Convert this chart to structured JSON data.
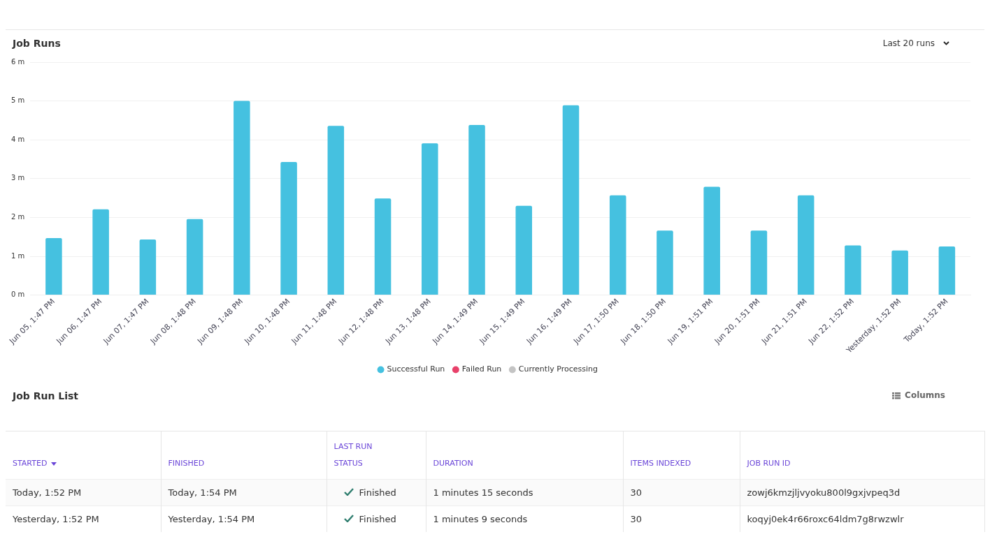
{
  "chart_data": [
    {
      "type": "bar",
      "title": "Job Runs",
      "annotations": [
        "Last 20 runs"
      ],
      "categories": [
        "Jun 05, 1:47 PM",
        "Jun 06, 1:47 PM",
        "Jun 07, 1:47 PM",
        "Jun 08, 1:48 PM",
        "Jun 09, 1:48 PM",
        "Jun 10, 1:48 PM",
        "Jun 11, 1:48 PM",
        "Jun 12, 1:48 PM",
        "Jun 13, 1:48 PM",
        "Jun 14, 1:49 PM",
        "Jun 15, 1:49 PM",
        "Jun 16, 1:49 PM",
        "Jun 17, 1:50 PM",
        "Jun 18, 1:50 PM",
        "Jun 19, 1:51 PM",
        "Jun 20, 1:51 PM",
        "Jun 21, 1:51 PM",
        "Jun 22, 1:52 PM",
        "Yesterday, 1:52 PM",
        "Today, 1:52 PM"
      ],
      "series": [
        {
          "name": "Successful Run",
          "color": "#45c1e0",
          "values": [
            1.47,
            2.21,
            1.43,
            1.96,
            5.0,
            3.43,
            4.36,
            2.49,
            3.91,
            4.38,
            2.3,
            4.89,
            2.57,
            1.66,
            2.79,
            1.66,
            2.57,
            1.28,
            1.15,
            1.25
          ]
        },
        {
          "name": "Failed Run",
          "color": "#e8416a",
          "values": [
            null,
            null,
            null,
            null,
            null,
            null,
            null,
            null,
            null,
            null,
            null,
            null,
            null,
            null,
            null,
            null,
            null,
            null,
            null,
            null
          ]
        },
        {
          "name": "Currently Processing",
          "color": "#c4c4c4",
          "values": [
            null,
            null,
            null,
            null,
            null,
            null,
            null,
            null,
            null,
            null,
            null,
            null,
            null,
            null,
            null,
            null,
            null,
            null,
            null,
            null
          ]
        }
      ],
      "stacked": true,
      "ylim": [
        0,
        6
      ],
      "yticks": [
        {
          "value": 0,
          "label": "0 m"
        },
        {
          "value": 1,
          "label": "1 m"
        },
        {
          "value": 2,
          "label": "2 m"
        },
        {
          "value": 3,
          "label": "3 m"
        },
        {
          "value": 4,
          "label": "4 m"
        },
        {
          "value": 5,
          "label": "5 m"
        },
        {
          "value": 6,
          "label": "6 m"
        }
      ],
      "grid": "y",
      "legend": "bottom"
    },
    {
      "type": "other",
      "title": "Job Run List",
      "categories": [
        "STARTED",
        "FINISHED",
        "LAST RUN STATUS",
        "DURATION",
        "ITEMS INDEXED",
        "JOB RUN ID"
      ],
      "annotations": [
        "Columns",
        "Today, 1:52 PM",
        "Today, 1:54 PM",
        "Finished",
        "1 minutes 15 seconds",
        "30",
        "zowj6kmzjljvyoku800l9gxjvpeq3d",
        "Yesterday, 1:52 PM",
        "Yesterday, 1:54 PM",
        "Finished",
        "1 minutes 9 seconds",
        "30",
        "koqyj0ek4r66roxc64ldm7g8rwzwlr"
      ]
    }
  ]
}
